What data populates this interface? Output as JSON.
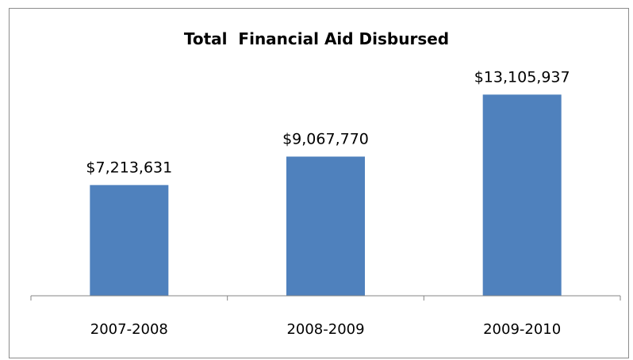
{
  "chart_data": {
    "type": "bar",
    "title": "Total  Financial Aid Disbursed",
    "categories": [
      "2007-2008",
      "2008-2009",
      "2009-2010"
    ],
    "values": [
      7213631,
      9067770,
      13105937
    ],
    "data_labels": [
      "$7,213,631",
      "$9,067,770",
      "$13,105,937"
    ],
    "xlabel": "",
    "ylabel": "",
    "ylim": [
      0,
      14000000
    ],
    "grid": false,
    "legend": "none",
    "bar_color": "#4f81bd",
    "axis_color": "#868686"
  }
}
